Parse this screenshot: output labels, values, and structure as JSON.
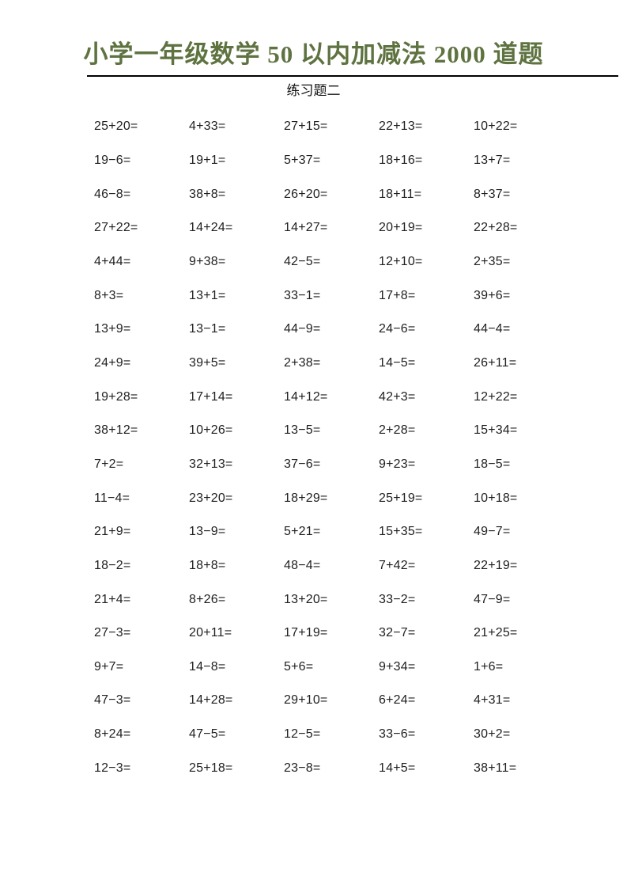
{
  "page": {
    "title": "小学一年级数学 50 以内加减法 2000 道题",
    "subtitle": "练习题二",
    "title_color": "#5f7341",
    "rule_color": "#000000",
    "text_color": "#1f1f1f"
  },
  "worksheet": {
    "columns": 5,
    "rows": [
      [
        "25+20=",
        "4+33=",
        "27+15=",
        "22+13=",
        "10+22="
      ],
      [
        "19−6=",
        "19+1=",
        "5+37=",
        "18+16=",
        "13+7="
      ],
      [
        "46−8=",
        "38+8=",
        "26+20=",
        "18+11=",
        "8+37="
      ],
      [
        "27+22=",
        "14+24=",
        "14+27=",
        "20+19=",
        "22+28="
      ],
      [
        "4+44=",
        "9+38=",
        "42−5=",
        "12+10=",
        "2+35="
      ],
      [
        "8+3=",
        "13+1=",
        "33−1=",
        "17+8=",
        "39+6="
      ],
      [
        "13+9=",
        "13−1=",
        "44−9=",
        "24−6=",
        "44−4="
      ],
      [
        "24+9=",
        "39+5=",
        "2+38=",
        "14−5=",
        "26+11="
      ],
      [
        "19+28=",
        "17+14=",
        "14+12=",
        "42+3=",
        "12+22="
      ],
      [
        "38+12=",
        "10+26=",
        "13−5=",
        "2+28=",
        "15+34="
      ],
      [
        "7+2=",
        "32+13=",
        "37−6=",
        "9+23=",
        "18−5="
      ],
      [
        "11−4=",
        "23+20=",
        "18+29=",
        "25+19=",
        "10+18="
      ],
      [
        "21+9=",
        "13−9=",
        "5+21=",
        "15+35=",
        "49−7="
      ],
      [
        "18−2=",
        "18+8=",
        "48−4=",
        "7+42=",
        "22+19="
      ],
      [
        "21+4=",
        "8+26=",
        "13+20=",
        "33−2=",
        "47−9="
      ],
      [
        "27−3=",
        "20+11=",
        "17+19=",
        "32−7=",
        "21+25="
      ],
      [
        "9+7=",
        "14−8=",
        "5+6=",
        "9+34=",
        "1+6="
      ],
      [
        "47−3=",
        "14+28=",
        "29+10=",
        "6+24=",
        "4+31="
      ],
      [
        "8+24=",
        "47−5=",
        "12−5=",
        "33−6=",
        "30+2="
      ],
      [
        "12−3=",
        "25+18=",
        "23−8=",
        "14+5=",
        "38+11="
      ]
    ]
  }
}
